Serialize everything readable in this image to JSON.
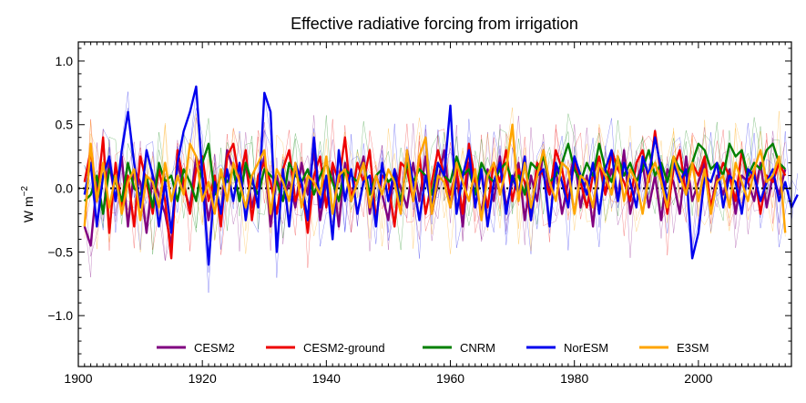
{
  "chart_data": {
    "type": "line",
    "title": "Effective radiative forcing from irrigation",
    "xlabel": "",
    "ylabel": "W m",
    "ylabel_superscript": "−2",
    "xlim": [
      1900,
      2015
    ],
    "ylim": [
      -1.4,
      1.15
    ],
    "xticks": [
      1900,
      1920,
      1940,
      1960,
      1980,
      2000
    ],
    "xtick_labels": [
      "1900",
      "1920",
      "1940",
      "1960",
      "1980",
      "2000"
    ],
    "yticks": [
      -1.0,
      -0.5,
      0.0,
      0.5,
      1.0
    ],
    "ytick_labels": [
      "−1.0",
      "−0.5",
      "0.0",
      "0.5",
      "1.0"
    ],
    "zero_line": "black dotted",
    "grid": false,
    "legend_position": "lower center",
    "x_start": 1901,
    "series": [
      {
        "name": "CESM2",
        "color": "#800080",
        "values": [
          -0.3,
          -0.45,
          0.05,
          -0.2,
          0.2,
          -0.1,
          0.25,
          -0.3,
          0.15,
          0.05,
          -0.35,
          0.1,
          -0.05,
          -0.2,
          -0.45,
          0.2,
          0.0,
          -0.15,
          0.25,
          0.1,
          -0.25,
          0.05,
          -0.2,
          0.3,
          0.15,
          -0.1,
          0.2,
          -0.15,
          0.05,
          0.25,
          -0.3,
          0.1,
          -0.1,
          0.05,
          -0.15,
          0.2,
          -0.05,
          0.3,
          -0.25,
          0.05,
          0.15,
          -0.3,
          0.2,
          -0.1,
          0.05,
          0.25,
          -0.2,
          0.1,
          -0.05,
          -0.25,
          0.15,
          0.0,
          -0.15,
          0.2,
          -0.1,
          0.25,
          -0.2,
          0.05,
          0.3,
          -0.15,
          0.1,
          -0.3,
          0.2,
          0.05,
          -0.2,
          0.15,
          -0.1,
          0.25,
          -0.15,
          0.05,
          0.2,
          -0.25,
          0.1,
          -0.1,
          0.3,
          -0.05,
          0.15,
          -0.2,
          0.05,
          0.25,
          -0.15,
          0.1,
          -0.3,
          0.2,
          -0.05,
          0.15,
          -0.1,
          0.3,
          -0.2,
          0.05,
          0.2,
          -0.15,
          0.1,
          -0.25,
          0.15,
          0.05,
          -0.2,
          0.25,
          -0.1,
          0.05,
          0.2,
          -0.15,
          0.1,
          -0.05,
          0.15,
          -0.2,
          0.1,
          0.05,
          -0.1,
          0.2,
          -0.15,
          0.1,
          -0.05,
          0.15
        ]
      },
      {
        "name": "CESM2-ground",
        "color": "#ee0000",
        "values": [
          0.05,
          0.3,
          -0.1,
          0.4,
          -0.35,
          0.2,
          -0.15,
          0.1,
          -0.3,
          0.25,
          0.05,
          -0.2,
          0.15,
          -0.1,
          -0.55,
          0.3,
          0.05,
          -0.2,
          0.15,
          0.25,
          -0.1,
          0.1,
          -0.3,
          0.25,
          0.35,
          0.05,
          0.3,
          -0.25,
          0.1,
          0.2,
          0.05,
          -0.2,
          0.15,
          0.3,
          -0.1,
          0.05,
          -0.35,
          0.1,
          0.25,
          -0.15,
          0.2,
          0.05,
          0.4,
          -0.1,
          0.2,
          0.05,
          0.3,
          -0.25,
          0.1,
          0.05,
          -0.3,
          0.2,
          0.15,
          -0.1,
          0.25,
          -0.2,
          0.05,
          0.3,
          0.1,
          -0.05,
          0.15,
          -0.2,
          0.35,
          0.05,
          0.1,
          -0.15,
          0.2,
          0.05,
          0.3,
          -0.1,
          0.15,
          0.05,
          -0.25,
          0.2,
          0.1,
          -0.05,
          0.3,
          0.15,
          -0.1,
          0.2,
          0.05,
          -0.15,
          0.1,
          0.25,
          -0.05,
          0.3,
          0.15,
          0.05,
          -0.1,
          0.2,
          0.3,
          0.05,
          0.45,
          0.1,
          -0.2,
          0.15,
          0.3,
          -0.05,
          0.2,
          0.1,
          0.25,
          -0.15,
          0.05,
          0.2,
          0.1,
          -0.1,
          0.3,
          0.05,
          0.15,
          -0.2,
          0.1,
          0.05,
          0.2,
          0.1
        ]
      },
      {
        "name": "CNRM",
        "color": "#008000",
        "values": [
          -0.1,
          -0.05,
          0.1,
          -0.2,
          0.15,
          0.05,
          -0.1,
          0.2,
          0.0,
          -0.05,
          0.1,
          -0.15,
          0.2,
          0.05,
          0.1,
          -0.1,
          0.15,
          0.05,
          -0.1,
          0.2,
          0.35,
          -0.05,
          0.1,
          0.05,
          0.15,
          -0.1,
          0.2,
          0.05,
          -0.05,
          0.15,
          0.1,
          0.05,
          -0.1,
          0.2,
          0.1,
          0.05,
          0.15,
          -0.05,
          0.1,
          0.2,
          0.05,
          -0.1,
          0.15,
          0.1,
          0.05,
          0.2,
          -0.05,
          0.1,
          0.15,
          0.05,
          0.1,
          -0.1,
          0.2,
          0.05,
          0.15,
          0.1,
          -0.05,
          0.2,
          0.1,
          0.05,
          0.25,
          0.1,
          0.15,
          -0.05,
          0.2,
          0.1,
          0.05,
          0.15,
          0.2,
          0.05,
          0.1,
          -0.05,
          0.2,
          0.15,
          0.25,
          0.05,
          0.1,
          0.2,
          0.35,
          0.15,
          0.05,
          0.2,
          0.1,
          0.35,
          0.15,
          0.05,
          0.25,
          0.1,
          0.2,
          0.05,
          0.15,
          0.3,
          0.1,
          0.2,
          0.05,
          0.25,
          0.15,
          0.1,
          0.2,
          0.35,
          0.3,
          0.15,
          0.2,
          0.1,
          0.35,
          0.25,
          0.3,
          0.1,
          0.2,
          0.15,
          0.3,
          0.35,
          0.2,
          0.15
        ]
      },
      {
        "name": "NorESM",
        "color": "#0000ee",
        "values": [
          -0.05,
          0.2,
          -0.3,
          0.1,
          0.25,
          -0.1,
          0.3,
          0.6,
          0.2,
          -0.15,
          0.3,
          0.1,
          -0.3,
          0.05,
          -0.35,
          0.2,
          0.45,
          0.6,
          0.8,
          0.1,
          -0.6,
          0.05,
          -0.2,
          0.15,
          -0.1,
          0.2,
          -0.25,
          0.1,
          -0.15,
          0.75,
          0.6,
          -0.5,
          0.15,
          -0.3,
          0.2,
          0.05,
          -0.25,
          0.4,
          -0.15,
          0.1,
          -0.4,
          0.3,
          -0.1,
          0.15,
          -0.2,
          0.05,
          0.1,
          -0.3,
          0.2,
          -0.1,
          0.15,
          -0.2,
          0.3,
          0.05,
          -0.25,
          0.1,
          -0.15,
          0.2,
          0.1,
          0.65,
          -0.2,
          0.1,
          0.3,
          -0.15,
          0.15,
          -0.3,
          0.05,
          0.2,
          -0.2,
          0.1,
          -0.05,
          0.25,
          -0.25,
          0.1,
          0.15,
          -0.3,
          0.2,
          0.05,
          -0.15,
          0.25,
          0.1,
          -0.05,
          0.2,
          -0.2,
          0.15,
          0.3,
          -0.1,
          0.2,
          0.05,
          -0.15,
          0.25,
          0.1,
          0.4,
          0.15,
          -0.1,
          0.2,
          0.05,
          0.15,
          -0.55,
          -0.35,
          0.1,
          0.05,
          0.2,
          -0.15,
          0.1,
          0.05,
          -0.2,
          0.15,
          0.1,
          -0.1,
          0.05,
          0.15,
          -0.1,
          0.05,
          -0.15,
          -0.05
        ]
      },
      {
        "name": "E3SM",
        "color": "#ffa500",
        "values": [
          -0.3,
          0.35,
          -0.1,
          0.2,
          -0.15,
          0.1,
          -0.2,
          0.05,
          0.15,
          -0.25,
          0.1,
          0.05,
          -0.15,
          0.2,
          -0.1,
          0.1,
          -0.05,
          0.35,
          0.25,
          -0.1,
          0.05,
          -0.2,
          0.15,
          -0.1,
          0.2,
          0.05,
          -0.15,
          0.1,
          0.2,
          0.3,
          -0.2,
          0.15,
          0.05,
          -0.1,
          0.2,
          -0.15,
          0.1,
          0.05,
          -0.05,
          0.25,
          -0.2,
          0.1,
          0.15,
          -0.1,
          0.05,
          0.2,
          -0.15,
          0.1,
          -0.05,
          0.15,
          0.05,
          -0.2,
          0.3,
          -0.1,
          0.25,
          0.4,
          -0.2,
          0.1,
          0.05,
          -0.15,
          0.2,
          0.05,
          -0.1,
          0.15,
          -0.25,
          0.1,
          0.2,
          -0.05,
          0.15,
          0.5,
          -0.1,
          0.2,
          -0.15,
          0.1,
          0.3,
          0.05,
          -0.1,
          0.2,
          0.15,
          -0.2,
          0.1,
          0.05,
          -0.15,
          0.2,
          0.1,
          -0.05,
          0.25,
          -0.1,
          0.15,
          0.05,
          -0.2,
          0.1,
          0.2,
          0.05,
          -0.15,
          0.25,
          0.1,
          -0.05,
          0.2,
          -0.1,
          0.15,
          -0.2,
          0.05,
          0.1,
          -0.15,
          0.2,
          0.05,
          -0.1,
          0.15,
          0.3,
          0.05,
          0.1,
          0.25,
          -0.35
        ]
      }
    ]
  }
}
